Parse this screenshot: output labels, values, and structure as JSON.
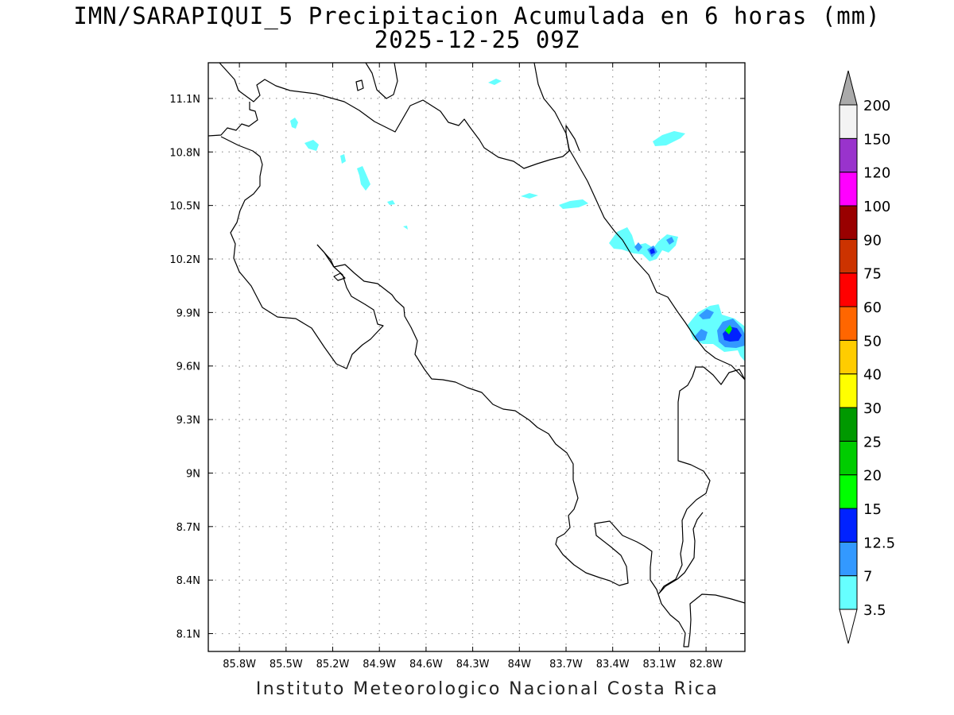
{
  "title": {
    "line1": "IMN/SARAPIQUI_5 Precipitacion Acumulada en 6 horas (mm)",
    "line2": "2025-12-25 09Z"
  },
  "footer": "Instituto Meteorologico Nacional Costa Rica",
  "map": {
    "lon_range": [
      -86.0,
      -82.55
    ],
    "lat_range": [
      8.0,
      11.3
    ],
    "grid": true,
    "x_ticks": [
      {
        "value": -85.8,
        "label": "85.8W"
      },
      {
        "value": -85.5,
        "label": "85.5W"
      },
      {
        "value": -85.2,
        "label": "85.2W"
      },
      {
        "value": -84.9,
        "label": "84.9W"
      },
      {
        "value": -84.6,
        "label": "84.6W"
      },
      {
        "value": -84.3,
        "label": "84.3W"
      },
      {
        "value": -84.0,
        "label": "84W"
      },
      {
        "value": -83.7,
        "label": "83.7W"
      },
      {
        "value": -83.4,
        "label": "83.4W"
      },
      {
        "value": -83.1,
        "label": "83.1W"
      },
      {
        "value": -82.8,
        "label": "82.8W"
      }
    ],
    "y_ticks": [
      {
        "value": 8.1,
        "label": "8.1N"
      },
      {
        "value": 8.4,
        "label": "8.4N"
      },
      {
        "value": 8.7,
        "label": "8.7N"
      },
      {
        "value": 9.0,
        "label": "9N"
      },
      {
        "value": 9.3,
        "label": "9.3N"
      },
      {
        "value": 9.6,
        "label": "9.6N"
      },
      {
        "value": 9.9,
        "label": "9.9N"
      },
      {
        "value": 10.2,
        "label": "10.2N"
      },
      {
        "value": 10.5,
        "label": "10.5N"
      },
      {
        "value": 10.8,
        "label": "10.8N"
      },
      {
        "value": 11.1,
        "label": "11.1N"
      }
    ]
  },
  "colorbar": {
    "levels": [
      "3.5",
      "7",
      "12.5",
      "15",
      "20",
      "25",
      "30",
      "40",
      "50",
      "60",
      "75",
      "90",
      "100",
      "120",
      "150",
      "200"
    ],
    "colors": [
      "#66ffff",
      "#3399ff",
      "#0022ff",
      "#00ff00",
      "#00cc00",
      "#009900",
      "#ffff00",
      "#ffcc00",
      "#ff6600",
      "#ff0000",
      "#cc3300",
      "#990000",
      "#ff00ff",
      "#9933cc",
      "#f3f3f3",
      "#aaaaaa"
    ],
    "under_color": "#ffffff",
    "over_color": "#aaaaaa"
  },
  "colors": {
    "coastline": "#000000",
    "grid": "#999999"
  }
}
